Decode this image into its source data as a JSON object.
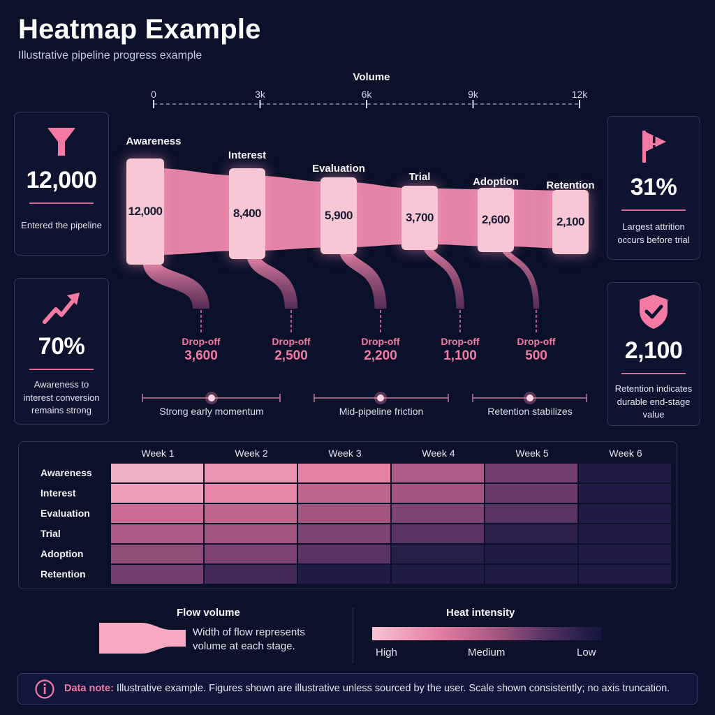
{
  "title": "Heatmap Example",
  "subtitle": "Illustrative pipeline progress example",
  "colors": {
    "background": "#0b1129",
    "accent": "#f47aa6",
    "flow": "#f590b5",
    "box": "#f8c7d6"
  },
  "chart_data": [
    {
      "type": "area",
      "xlabel": "Volume",
      "xlim": [
        0,
        12000
      ],
      "xticks": [
        "0",
        "3k",
        "6k",
        "9k",
        "12k"
      ],
      "stages": [
        {
          "name": "Awareness",
          "value": 12000,
          "label": "12,000"
        },
        {
          "name": "Interest",
          "value": 8400,
          "label": "8,400"
        },
        {
          "name": "Evaluation",
          "value": 5900,
          "label": "5,900"
        },
        {
          "name": "Trial",
          "value": 3700,
          "label": "3,700"
        },
        {
          "name": "Adoption",
          "value": 2600,
          "label": "2,600"
        },
        {
          "name": "Retention",
          "value": 2100,
          "label": "2,100"
        }
      ],
      "dropoffs": [
        {
          "label": "Drop-off",
          "value": 3600,
          "display": "3,600"
        },
        {
          "label": "Drop-off",
          "value": 2500,
          "display": "2,500"
        },
        {
          "label": "Drop-off",
          "value": 2200,
          "display": "2,200"
        },
        {
          "label": "Drop-off",
          "value": 1100,
          "display": "1,100"
        },
        {
          "label": "Drop-off",
          "value": 500,
          "display": "500"
        }
      ],
      "annotations": [
        "Strong early momentum",
        "Mid-pipeline friction",
        "Retention stabilizes"
      ]
    },
    {
      "type": "heatmap",
      "columns": [
        "Week 1",
        "Week 2",
        "Week 3",
        "Week 4",
        "Week 5",
        "Week 6"
      ],
      "rows": [
        "Awareness",
        "Interest",
        "Evaluation",
        "Trial",
        "Adoption",
        "Retention"
      ],
      "intensity": [
        [
          0.92,
          0.8,
          0.72,
          0.5,
          0.32,
          0.05
        ],
        [
          0.85,
          0.75,
          0.55,
          0.45,
          0.3,
          0.05
        ],
        [
          0.6,
          0.55,
          0.45,
          0.35,
          0.25,
          0.05
        ],
        [
          0.48,
          0.45,
          0.35,
          0.25,
          0.1,
          0.05
        ],
        [
          0.4,
          0.35,
          0.25,
          0.08,
          0.05,
          0.05
        ],
        [
          0.32,
          0.18,
          0.05,
          0.05,
          0.05,
          0.05
        ]
      ],
      "scale": {
        "title": "Heat intensity",
        "labels": [
          "High",
          "Medium",
          "Low"
        ]
      }
    }
  ],
  "cards": {
    "entered": {
      "icon": "funnel-icon",
      "value": "12,000",
      "desc": "Entered the pipeline"
    },
    "conversion": {
      "icon": "trend-up-icon",
      "value": "70%",
      "desc": "Awareness to interest conversion remains strong"
    },
    "attrition": {
      "icon": "warning-flag-icon",
      "value": "31%",
      "desc": "Largest attrition occurs before trial"
    },
    "retention": {
      "icon": "shield-check-icon",
      "value": "2,100",
      "desc": "Retention indicates durable end-stage value"
    }
  },
  "legend": {
    "flow_title": "Flow volume",
    "flow_text": "Width of flow represents volume at each stage.",
    "heat_title": "Heat intensity",
    "heat_labels": [
      "High",
      "Medium",
      "Low"
    ]
  },
  "note": {
    "icon": "info-icon",
    "label": "Data note:",
    "text": " Illustrative example. Figures shown are illustrative unless sourced by the user. Scale shown consistently; no axis truncation."
  }
}
